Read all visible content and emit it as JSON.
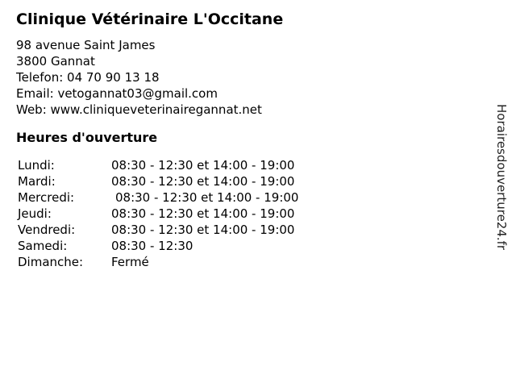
{
  "business": {
    "name": "Clinique Vétérinaire L'Occitane",
    "contact": {
      "street": "98 avenue Saint James",
      "city": "3800 Gannat",
      "phone": "Telefon: 04 70 90 13 18",
      "email": "Email: vetogannat03@gmail.com",
      "web": "Web: www.cliniqueveterinairegannat.net"
    }
  },
  "hours": {
    "heading": "Heures d'ouverture",
    "rows": [
      {
        "day": "Lundi:",
        "time": "08:30 - 12:30 et 14:00 - 19:00"
      },
      {
        "day": "Mardi:",
        "time": "08:30 - 12:30 et 14:00 - 19:00"
      },
      {
        "day": "Mercredi:",
        "time": "08:30 - 12:30 et 14:00 - 19:00"
      },
      {
        "day": "Jeudi:",
        "time": "08:30 - 12:30 et 14:00 - 19:00"
      },
      {
        "day": "Vendredi:",
        "time": "08:30 - 12:30 et 14:00 - 19:00"
      },
      {
        "day": "Samedi:",
        "time": "08:30 - 12:30"
      },
      {
        "day": "Dimanche:",
        "time": "Fermé"
      }
    ]
  },
  "watermark": {
    "text": "Horairesdouverture24.fr"
  },
  "colors": {
    "text": "#000000",
    "background": "#ffffff",
    "watermark": "#222222"
  }
}
